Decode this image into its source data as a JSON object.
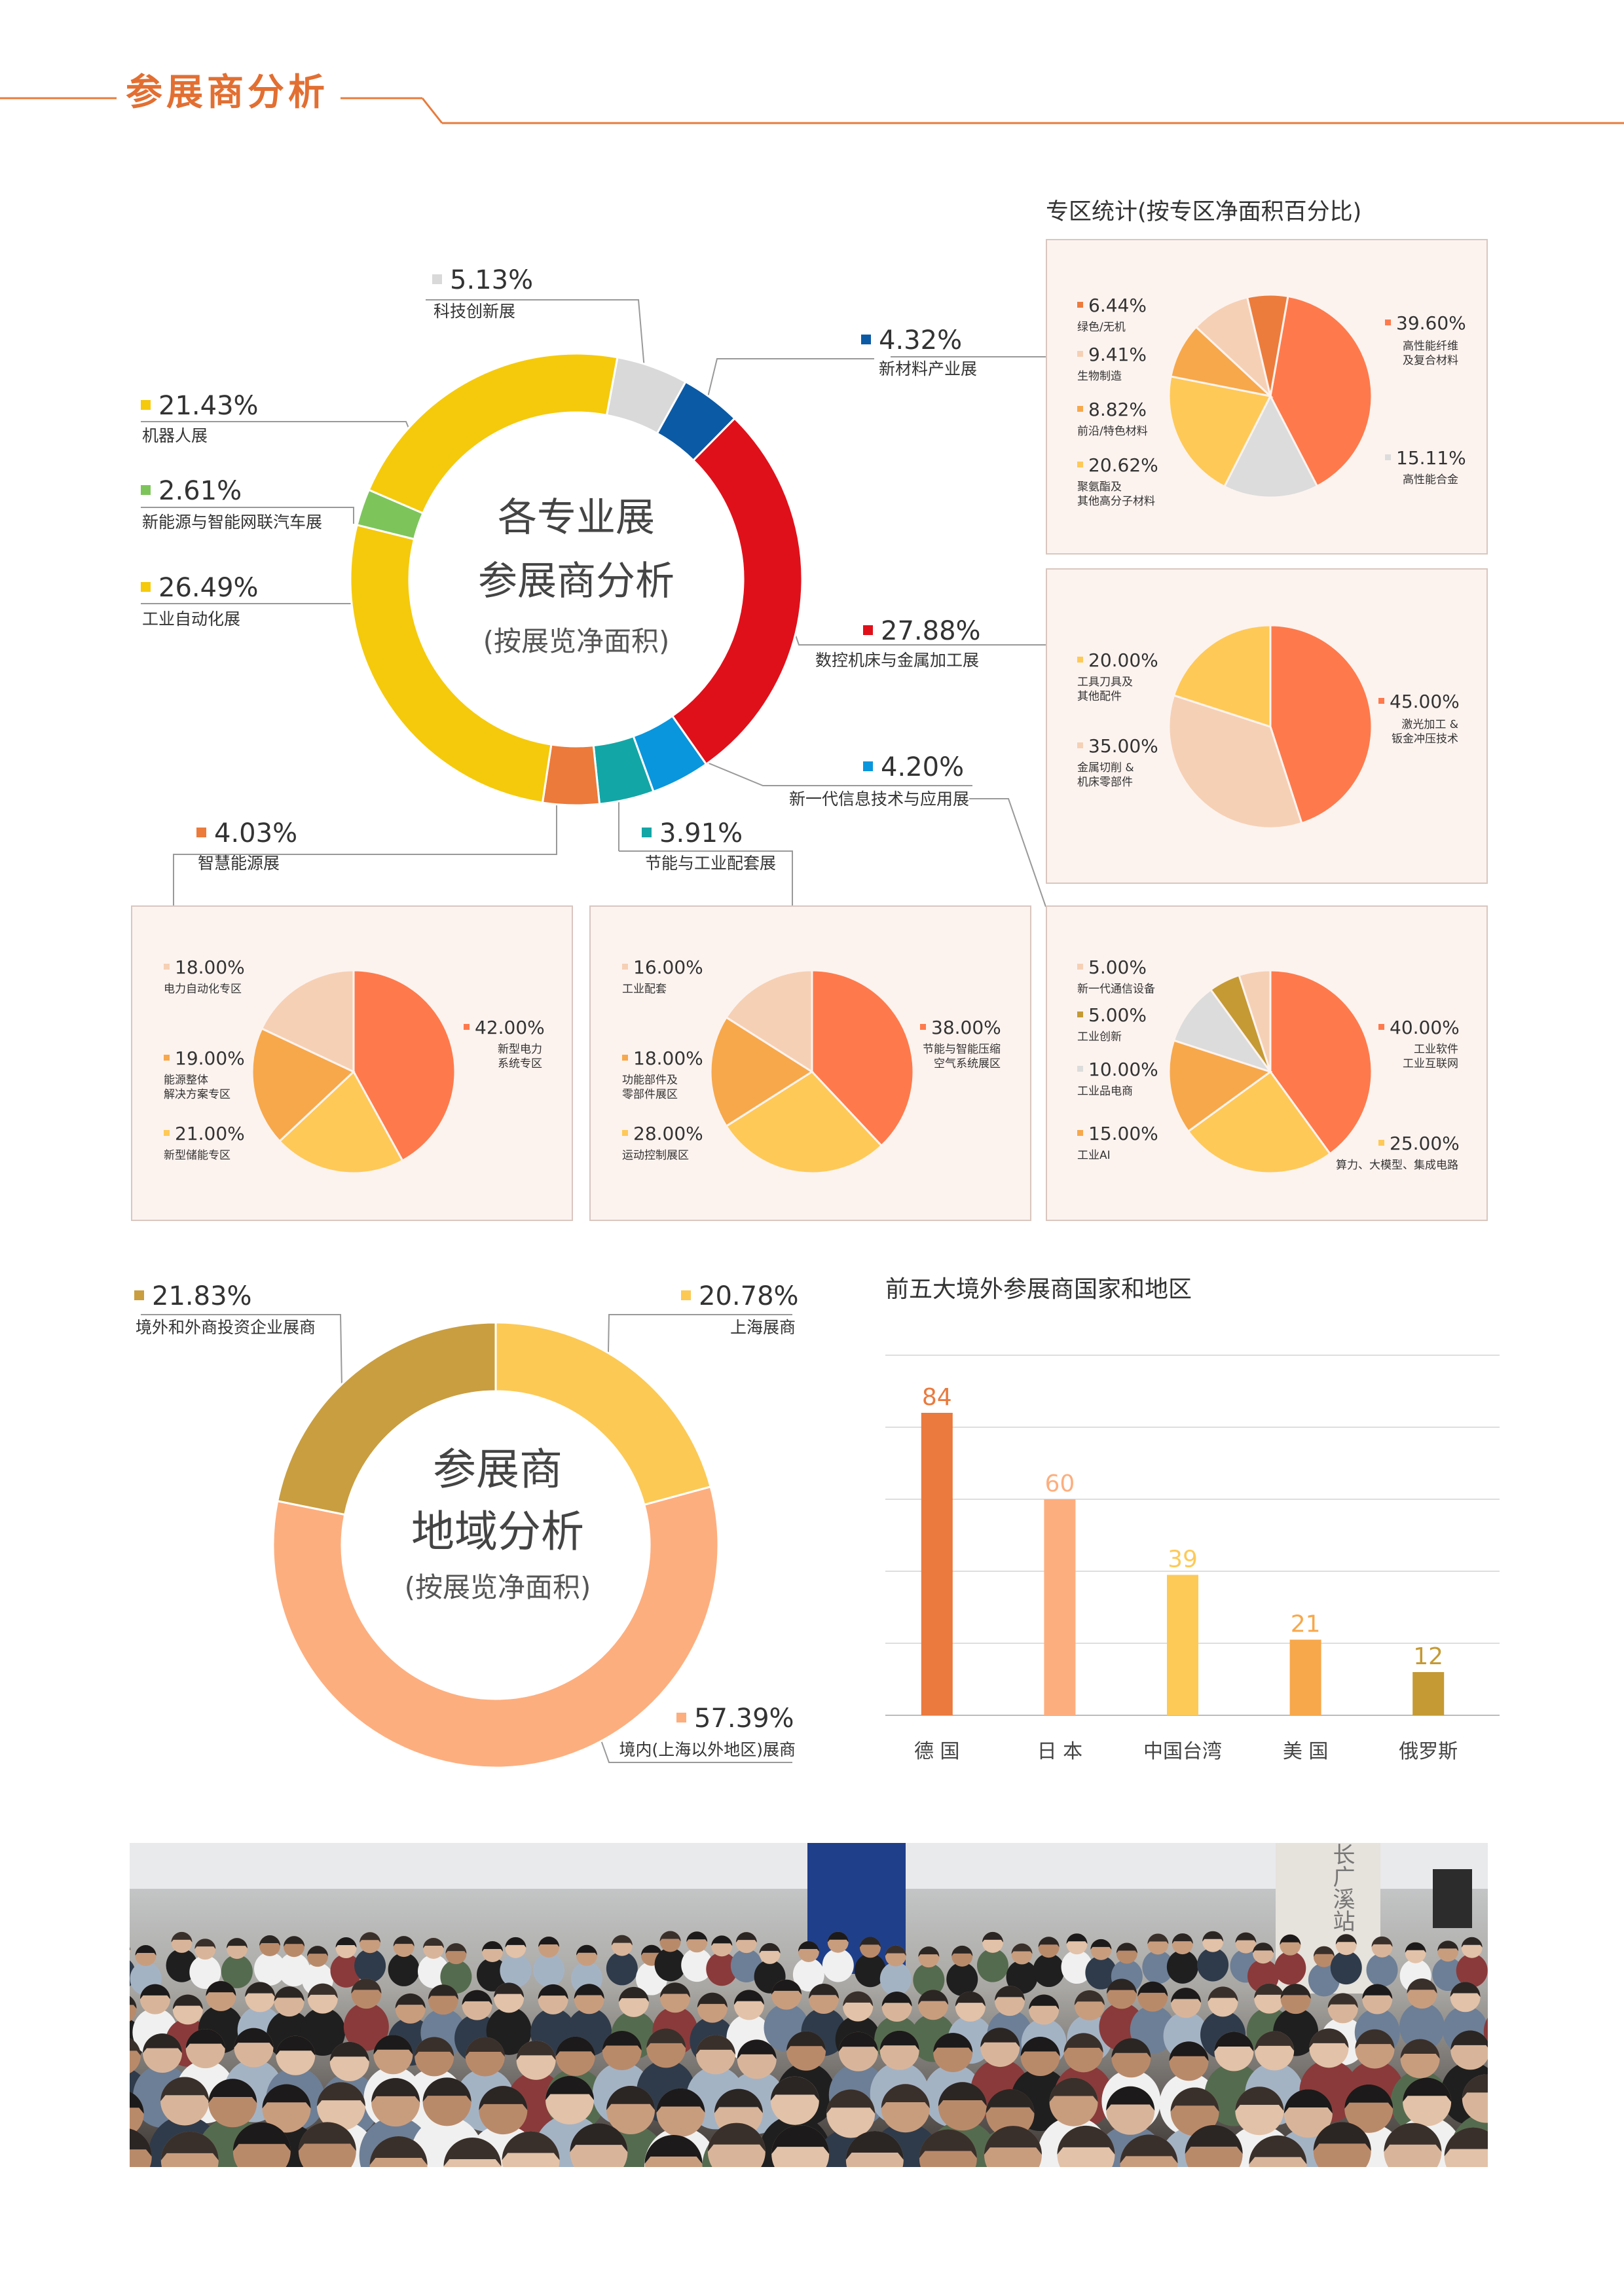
{
  "page": {
    "section_title": "参展商分析"
  },
  "main_donut": {
    "title_line1": "各专业展",
    "title_line2": "参展商分析",
    "subtitle": "(按展览净面积)",
    "chart_data": {
      "type": "pie",
      "style": "donut",
      "unit": "%",
      "slices": [
        {
          "label": "科技创新展",
          "value": 5.13,
          "display": "5.13%",
          "color": "#d9d9d9"
        },
        {
          "label": "新材料产业展",
          "value": 4.32,
          "display": "4.32%",
          "color": "#0b5aa6"
        },
        {
          "label": "数控机床与金属加工展",
          "value": 27.88,
          "display": "27.88%",
          "color": "#e0101a"
        },
        {
          "label": "新一代信息技术与应用展",
          "value": 4.2,
          "display": "4.20%",
          "color": "#0a96dc"
        },
        {
          "label": "节能与工业配套展",
          "value": 3.91,
          "display": "3.91%",
          "color": "#13a6a6"
        },
        {
          "label": "智慧能源展",
          "value": 4.03,
          "display": "4.03%",
          "color": "#ec7a3a"
        },
        {
          "label": "工业自动化展",
          "value": 26.49,
          "display": "26.49%",
          "color": "#f5ca0c"
        },
        {
          "label": "新能源与智能网联汽车展",
          "value": 2.61,
          "display": "2.61%",
          "color": "#7dc55b"
        },
        {
          "label": "机器人展",
          "value": 21.43,
          "display": "21.43%",
          "color": "#f5ca0c"
        }
      ]
    }
  },
  "zone_stats_title": "专区统计(按专区净面积百分比)",
  "sub_pies": [
    {
      "id": "new-materials",
      "chart_data": {
        "type": "pie",
        "slices": [
          {
            "label": "高性能纤维\n及复合材料",
            "value": 39.6,
            "display": "39.60%",
            "color": "#fe7a4c"
          },
          {
            "label": "高性能合金",
            "value": 15.11,
            "display": "15.11%",
            "color": "#dcdcdc"
          },
          {
            "label": "聚氨酯及\n其他高分子材料",
            "value": 20.62,
            "display": "20.62%",
            "color": "#fec957"
          },
          {
            "label": "前沿/特色材料",
            "value": 8.82,
            "display": "8.82%",
            "color": "#f7a84b"
          },
          {
            "label": "生物制造",
            "value": 9.41,
            "display": "9.41%",
            "color": "#f6d0b5"
          },
          {
            "label": "绿色/无机",
            "value": 6.44,
            "display": "6.44%",
            "color": "#ec7c3c"
          }
        ]
      }
    },
    {
      "id": "cnc",
      "chart_data": {
        "type": "pie",
        "slices": [
          {
            "label": "激光加工 &\n钣金冲压技术",
            "value": 45.0,
            "display": "45.00%",
            "color": "#fe7a4c"
          },
          {
            "label": "金属切削 &\n机床零部件",
            "value": 35.0,
            "display": "35.00%",
            "color": "#f6d0b5"
          },
          {
            "label": "工具刀具及\n其他配件",
            "value": 20.0,
            "display": "20.00%",
            "color": "#fec957"
          }
        ]
      }
    },
    {
      "id": "energy",
      "chart_data": {
        "type": "pie",
        "slices": [
          {
            "label": "新型电力\n系统专区",
            "value": 42.0,
            "display": "42.00%",
            "color": "#fe7a4c"
          },
          {
            "label": "新型储能专区",
            "value": 21.0,
            "display": "21.00%",
            "color": "#fec957"
          },
          {
            "label": "能源整体\n解决方案专区",
            "value": 19.0,
            "display": "19.00%",
            "color": "#f7a84b"
          },
          {
            "label": "电力自动化专区",
            "value": 18.0,
            "display": "18.00%",
            "color": "#f6d0b5"
          }
        ]
      }
    },
    {
      "id": "energy-saving",
      "chart_data": {
        "type": "pie",
        "slices": [
          {
            "label": "节能与智能压缩\n空气系统展区",
            "value": 38.0,
            "display": "38.00%",
            "color": "#fe7a4c"
          },
          {
            "label": "运动控制展区",
            "value": 28.0,
            "display": "28.00%",
            "color": "#fec957"
          },
          {
            "label": "功能部件及\n零部件展区",
            "value": 18.0,
            "display": "18.00%",
            "color": "#f7a84b"
          },
          {
            "label": "工业配套",
            "value": 16.0,
            "display": "16.00%",
            "color": "#f6d0b5"
          }
        ]
      }
    },
    {
      "id": "it",
      "chart_data": {
        "type": "pie",
        "slices": [
          {
            "label": "工业软件\n工业互联网",
            "value": 40.0,
            "display": "40.00%",
            "color": "#fe7a4c"
          },
          {
            "label": "算力、大模型、集成电路",
            "value": 25.0,
            "display": "25.00%",
            "color": "#fec957"
          },
          {
            "label": "工业AI",
            "value": 15.0,
            "display": "15.00%",
            "color": "#f7a84b"
          },
          {
            "label": "工业品电商",
            "value": 10.0,
            "display": "10.00%",
            "color": "#dcdcdc"
          },
          {
            "label": "工业创新",
            "value": 5.0,
            "display": "5.00%",
            "color": "#c59a34"
          },
          {
            "label": "新一代通信设备",
            "value": 5.0,
            "display": "5.00%",
            "color": "#f6d0b5"
          }
        ]
      }
    }
  ],
  "region_donut": {
    "title_line1": "参展商",
    "title_line2": "地域分析",
    "subtitle": "(按展览净面积)",
    "chart_data": {
      "type": "pie",
      "style": "donut",
      "slices": [
        {
          "label": "上海展商",
          "value": 20.78,
          "display": "20.78%",
          "color": "#fcc954"
        },
        {
          "label": "境内(上海以外地区)展商",
          "value": 57.39,
          "display": "57.39%",
          "color": "#fdae7e"
        },
        {
          "label": "境外和外商投资企业展商",
          "value": 21.83,
          "display": "21.83%",
          "color": "#c99e40"
        }
      ]
    }
  },
  "bar_chart": {
    "chart_data": {
      "type": "bar",
      "title": "前五大境外参展商国家和地区",
      "categories": [
        "德 国",
        "日 本",
        "中国台湾",
        "美 国",
        "俄罗斯"
      ],
      "values": [
        84,
        60,
        39,
        21,
        12
      ],
      "colors": [
        "#ea7a3e",
        "#fdae7e",
        "#fdca58",
        "#f7a84b",
        "#c59a34"
      ],
      "ylim": [
        0,
        100
      ],
      "grid": true
    }
  },
  "photo": {
    "sign_text": "长广溪站"
  }
}
